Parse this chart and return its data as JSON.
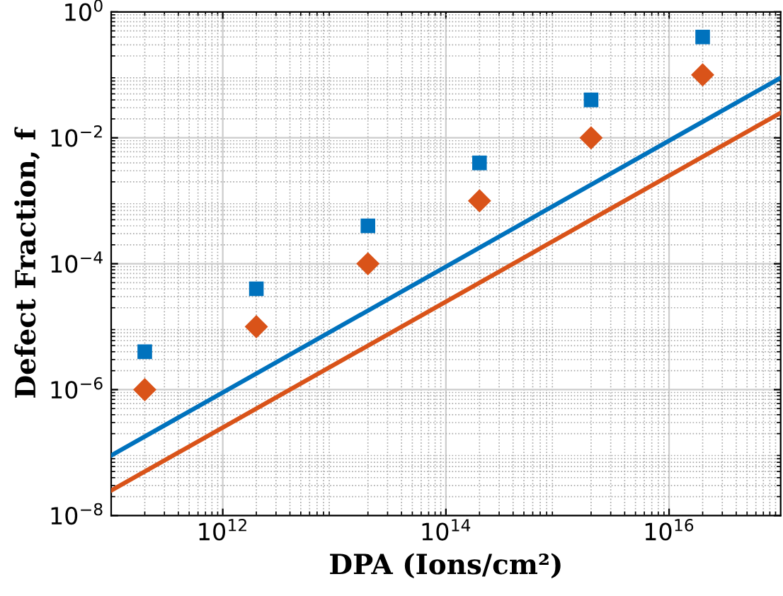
{
  "chart_data": {
    "type": "scatter",
    "xlabel": "DPA (Ions/cm²)",
    "ylabel": "Defect Fraction, f",
    "log": "xy",
    "grid": true,
    "xlim": [
      100000000000.0,
      1e+17
    ],
    "ylim": [
      1e-08,
      1
    ],
    "xticks": [
      {
        "value": 1000000000000.0,
        "label": "10$^{12}$"
      },
      {
        "value": 100000000000000.0,
        "label": "10$^{14}$"
      },
      {
        "value": 1e+16,
        "label": "10$^{16}$"
      }
    ],
    "yticks": [
      {
        "value": 1e-08,
        "label": "10$^{−8}$"
      },
      {
        "value": 1e-06,
        "label": "10$^{−6}$"
      },
      {
        "value": 0.0001,
        "label": "10$^{−4}$"
      },
      {
        "value": 0.01,
        "label": "10$^{−2}$"
      },
      {
        "value": 1,
        "label": "10$^{0}$"
      }
    ],
    "series": [
      {
        "type": "line",
        "color": "#0072bd",
        "x": [
          100000000000.0,
          1e+17
        ],
        "values": [
          9e-08,
          0.09
        ],
        "line_style": "solid",
        "marker": "none"
      },
      {
        "type": "line",
        "color": "#d95319",
        "x": [
          100000000000.0,
          1e+17
        ],
        "values": [
          2.5e-08,
          0.025
        ],
        "line_style": "solid",
        "marker": "none"
      },
      {
        "color": "#0072bd",
        "marker": "square",
        "x": [
          200000000000.0,
          2000000000000.0,
          20000000000000.0,
          200000000000000.0,
          2000000000000000.0,
          2e+16
        ],
        "values": [
          4e-06,
          4e-05,
          0.0004,
          0.004,
          0.04,
          0.4
        ]
      },
      {
        "color": "#d95319",
        "marker": "diamond",
        "x": [
          200000000000.0,
          2000000000000.0,
          20000000000000.0,
          200000000000000.0,
          2000000000000000.0,
          2e+16
        ],
        "values": [
          1e-06,
          1e-05,
          0.0001,
          0.001,
          0.01,
          0.1
        ]
      }
    ]
  }
}
